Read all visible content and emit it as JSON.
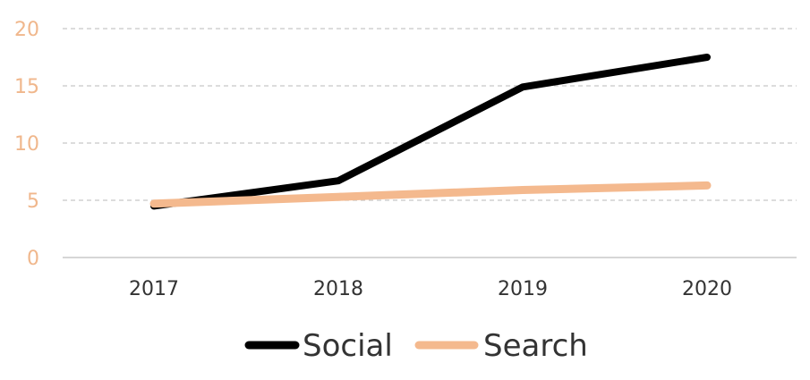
{
  "chart_data": {
    "type": "line",
    "title": "",
    "xlabel": "",
    "ylabel": "",
    "categories": [
      "2017",
      "2018",
      "2019",
      "2020"
    ],
    "ylim": [
      0,
      20
    ],
    "yticks": [
      "0",
      "5",
      "10",
      "15",
      "20"
    ],
    "grid": true,
    "legend_position": "bottom",
    "series": [
      {
        "name": "Social",
        "values": [
          4.5,
          6.7,
          14.9,
          17.5
        ],
        "color": "#000000"
      },
      {
        "name": "Search",
        "values": [
          4.7,
          5.3,
          5.9,
          6.3
        ],
        "color": "#F4B98E"
      }
    ],
    "colors": {
      "ytick": "#F0B78C",
      "xtick": "#333333",
      "grid": "#c8c8c8",
      "axis": "#c8c8c8"
    }
  }
}
